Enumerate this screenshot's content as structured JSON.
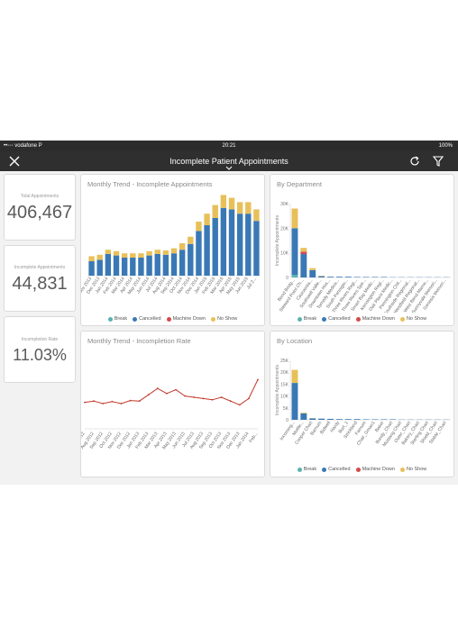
{
  "status_bar": {
    "carrier": "••◦◦◦ vodafone P",
    "time": "20:21",
    "battery": "100%"
  },
  "nav": {
    "title": "Incomplete Patient Appointments",
    "close_icon": "close-icon",
    "refresh_icon": "refresh-icon",
    "filter_icon": "filter-icon"
  },
  "kpis": [
    {
      "label": "Total Appointments",
      "value": "406,467"
    },
    {
      "label": "Incomplete Appointments",
      "value": "44,831"
    },
    {
      "label": "Incompletion Rate",
      "value": "11.03%"
    }
  ],
  "colors": {
    "break": "#5bb3b0",
    "cancelled": "#3a78b5",
    "machine_down": "#d44a4a",
    "no_show": "#e8c05a",
    "line": "#c0392b"
  },
  "legend": [
    "Break",
    "Cancelled",
    "Machine Down",
    "No Show"
  ],
  "chart_data": [
    {
      "type": "bar",
      "title": "Monthly Trend - Incomplete Appointments",
      "categories": [
        "Nov 2013",
        "Dec 2013",
        "Jan 2014",
        "Feb 2014",
        "Mar 2014",
        "Apr 2014",
        "May 2014",
        "Jun 2014",
        "Jul 2014",
        "Aug 2014",
        "Sep 2014",
        "Oct 2014",
        "Nov 2014",
        "Dec 2014",
        "Jan 2015",
        "Feb 2015",
        "Mar 2015",
        "Apr 2015",
        "May 2015",
        "Jun 2015",
        "Jul 2015"
      ],
      "tick_labels": [
        "Nov 2013",
        "Dec 2013",
        "Jan 2014",
        "Feb 2014",
        "Mar 2014",
        "Apr 2014",
        "May 2014",
        "Jun 2014",
        "Jul 2014",
        "Aug 2014",
        "Sep 2014",
        "Oct 2014",
        "Nov 2014",
        "Dec 2014",
        "Jan 2015",
        "Feb 2015",
        "Mar 2015",
        "Apr 2015",
        "May 2015",
        "Jun 2015",
        "Jul 2..."
      ],
      "series": [
        {
          "name": "Break",
          "values": [
            0,
            0,
            0,
            0,
            0,
            0,
            0,
            0,
            0,
            0,
            0,
            0,
            0,
            0,
            0,
            0,
            0,
            0,
            0,
            0,
            0
          ]
        },
        {
          "name": "Cancelled",
          "values": [
            1000,
            1100,
            1500,
            1400,
            1250,
            1250,
            1250,
            1400,
            1500,
            1450,
            1550,
            1800,
            2200,
            3100,
            3500,
            4000,
            4700,
            4600,
            4300,
            4300,
            3800
          ]
        },
        {
          "name": "Machine Down",
          "values": [
            0,
            0,
            0,
            0,
            0,
            0,
            0,
            0,
            0,
            0,
            0,
            0,
            0,
            0,
            0,
            0,
            0,
            0,
            0,
            0,
            0
          ]
        },
        {
          "name": "No Show",
          "values": [
            350,
            350,
            300,
            300,
            300,
            300,
            300,
            300,
            300,
            300,
            350,
            450,
            500,
            650,
            800,
            900,
            900,
            800,
            800,
            800,
            800
          ]
        }
      ],
      "stacked": true,
      "ylim": [
        0,
        5500
      ]
    },
    {
      "type": "line",
      "title": "Monthly Trend - Incompletion Rate",
      "categories": [
        "Jul 2012",
        "Aug 2012",
        "Sep 2012",
        "Oct 2012",
        "Nov 2012",
        "Dec 2012",
        "Jan 2013",
        "Feb 2013",
        "Mar 2013",
        "Apr 2013",
        "May 2013",
        "Jun 2013",
        "Jul 2013",
        "Aug 2013",
        "Sep 2013",
        "Oct 2013",
        "Nov 2013",
        "Dec 2013",
        "Jan 2014",
        "Feb..."
      ],
      "values": [
        10.5,
        11.0,
        10.0,
        10.8,
        10.0,
        11.2,
        11.0,
        13.5,
        16.0,
        14.0,
        15.5,
        13.0,
        12.5,
        12.0,
        11.5,
        12.5,
        11.0,
        9.5,
        12.0,
        19.5
      ],
      "ylim": [
        0,
        30
      ]
    },
    {
      "type": "bar",
      "title": "By Department",
      "ylabel": "Incomplete Appointments",
      "yticks": [
        "0",
        "10K",
        "20K",
        "30K"
      ],
      "ylim": [
        0,
        30000
      ],
      "categories": [
        "Bond Bridg...",
        "Steward Point Ch...",
        "Caucassia...",
        "Southwell Valle...",
        "Downtown Hos...",
        "Tamedy Medica...",
        "South Pennigto...",
        "Three Rivers Regi...",
        "Three Rivers Spe...",
        "Smart Bay Medic...",
        "Kennington Regi...",
        "Oak Place Medic...",
        "Pennington Chil...",
        "Southside Regional...",
        "Westfield Regional...",
        "West Bend Marne...",
        "Sunnyvale Memori...",
        "Genesis Memori..."
      ],
      "series": [
        {
          "name": "Break",
          "values": [
            1000,
            0,
            0,
            0,
            0,
            0,
            0,
            0,
            0,
            0,
            0,
            0,
            0,
            0,
            0,
            0,
            0,
            0
          ]
        },
        {
          "name": "Cancelled",
          "values": [
            19000,
            9500,
            3000,
            500,
            300,
            300,
            300,
            200,
            200,
            200,
            200,
            100,
            100,
            100,
            100,
            100,
            100,
            100
          ]
        },
        {
          "name": "Machine Down",
          "values": [
            0,
            1000,
            0,
            0,
            0,
            0,
            0,
            0,
            0,
            0,
            0,
            0,
            0,
            0,
            0,
            0,
            0,
            0
          ]
        },
        {
          "name": "No Show",
          "values": [
            8000,
            1500,
            800,
            200,
            0,
            0,
            0,
            0,
            0,
            0,
            0,
            0,
            0,
            0,
            0,
            0,
            0,
            0
          ]
        }
      ],
      "stacked": true
    },
    {
      "type": "bar",
      "title": "By Location",
      "ylabel": "Incomplete Appointments",
      "yticks": [
        "0",
        "5K",
        "10K",
        "15K",
        "20K",
        "25K"
      ],
      "ylim": [
        0,
        25000
      ],
      "categories": [
        "Incoming...",
        "Muttle...",
        "Cooper Chart",
        "Barnum",
        "Bidwell",
        "Hardy",
        "Burt_1",
        "Strickland",
        "Farnum",
        "Chair_Gman1",
        "Baker",
        "Bundy_Chart",
        "Mustang Chart",
        "Outer_Chart",
        "Bakery_Chart",
        "Sterling Chart",
        "Shield_Chart",
        "Stable_Chart"
      ],
      "series": [
        {
          "name": "Break",
          "values": [
            0,
            0,
            0,
            0,
            0,
            0,
            0,
            0,
            0,
            0,
            0,
            0,
            0,
            0,
            0,
            0,
            0,
            0
          ]
        },
        {
          "name": "Cancelled",
          "values": [
            15500,
            2700,
            600,
            500,
            400,
            300,
            300,
            300,
            200,
            200,
            200,
            200,
            100,
            100,
            100,
            100,
            100,
            100
          ]
        },
        {
          "name": "Machine Down",
          "values": [
            0,
            0,
            0,
            0,
            0,
            0,
            0,
            0,
            0,
            0,
            0,
            0,
            0,
            0,
            0,
            0,
            0,
            0
          ]
        },
        {
          "name": "No Show",
          "values": [
            5500,
            300,
            100,
            0,
            0,
            0,
            0,
            0,
            0,
            0,
            0,
            0,
            0,
            0,
            0,
            0,
            0,
            0
          ]
        }
      ],
      "stacked": true
    }
  ]
}
